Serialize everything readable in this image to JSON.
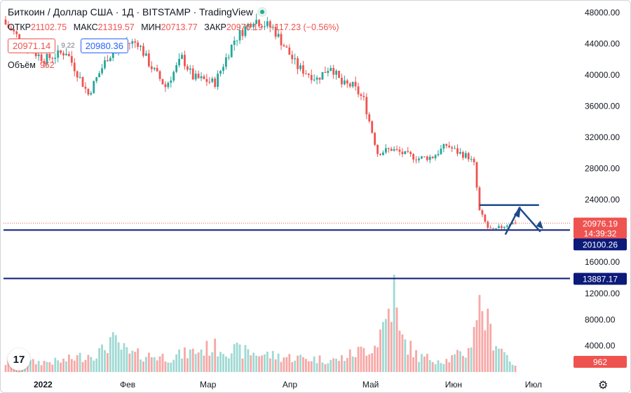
{
  "header": {
    "title": "Биткоин / Доллар США · 1Д · BITSTAMP · TradingView",
    "ohlc": [
      {
        "key": "ОТКР",
        "value": "21102.75"
      },
      {
        "key": "МАКС",
        "value": "21319.57"
      },
      {
        "key": "МИН",
        "value": "20713.77"
      },
      {
        "key": "ЗАКР",
        "value": "20976.19"
      }
    ],
    "change": "−117.23 (−0.56%)",
    "sell_price": "20971.14",
    "spread": "9.22",
    "buy_price": "20980.36",
    "volume_label": "Объём",
    "volume_value": "962"
  },
  "colors": {
    "up": "#26a69a",
    "down": "#ef5350",
    "level_line": "#0c1a7a",
    "drawing": "#1e4a8a",
    "volume_up": "#9fd9d3",
    "volume_down": "#f6a8a6"
  },
  "icons": {
    "logo": "tradingview-logo-icon",
    "settings": "gear-icon"
  },
  "chart_data": {
    "type": "candlestick",
    "symbol": "BTCUSD",
    "exchange": "BITSTAMP",
    "interval": "1D",
    "price_ylim": [
      12000,
      49000
    ],
    "price_ticks": [
      "48000.00",
      "44000.00",
      "40000.00",
      "36000.00",
      "32000.00",
      "28000.00",
      "24000.00",
      "16000.00"
    ],
    "volume_ylim": [
      0,
      13000
    ],
    "volume_ticks": [
      "12000.00",
      "8000.00",
      "4000.00"
    ],
    "x_labels": [
      "2022",
      "Фев",
      "Мар",
      "Апр",
      "Май",
      "Июн",
      "Июл"
    ],
    "price_labels": {
      "last": "20976.19",
      "countdown": "14:39:32",
      "level_1": "20100.26",
      "level_2": "13887.17",
      "volume_last": "962"
    },
    "horizontal_levels": [
      20100.26,
      13887.17
    ],
    "drawing_line": {
      "start_bar": 172,
      "end_bar": 189,
      "value": 23300
    },
    "close_anchors": [
      [
        0,
        46500
      ],
      [
        8,
        43500
      ],
      [
        14,
        42000
      ],
      [
        22,
        43000
      ],
      [
        30,
        37500
      ],
      [
        37,
        42300
      ],
      [
        43,
        44000
      ],
      [
        48,
        44200
      ],
      [
        52,
        41500
      ],
      [
        58,
        38500
      ],
      [
        64,
        42200
      ],
      [
        68,
        39700
      ],
      [
        76,
        39000
      ],
      [
        83,
        44500
      ],
      [
        90,
        47200
      ],
      [
        97,
        46000
      ],
      [
        106,
        41000
      ],
      [
        113,
        39500
      ],
      [
        118,
        41200
      ],
      [
        122,
        38800
      ],
      [
        126,
        38600
      ],
      [
        130,
        36800
      ],
      [
        135,
        30000
      ],
      [
        140,
        30500
      ],
      [
        145,
        29800
      ],
      [
        150,
        29300
      ],
      [
        155,
        29500
      ],
      [
        160,
        31000
      ],
      [
        164,
        30100
      ],
      [
        168,
        29500
      ],
      [
        170,
        28500
      ],
      [
        171,
        25500
      ],
      [
        172,
        22500
      ],
      [
        175,
        20400
      ],
      [
        177,
        20000
      ],
      [
        180,
        20500
      ],
      [
        183,
        21000
      ],
      [
        185,
        20976.19
      ]
    ],
    "volume_anchors": [
      [
        0,
        1500
      ],
      [
        20,
        1800
      ],
      [
        35,
        3500
      ],
      [
        38,
        5500
      ],
      [
        45,
        3000
      ],
      [
        60,
        2500
      ],
      [
        75,
        4200
      ],
      [
        90,
        3200
      ],
      [
        100,
        2600
      ],
      [
        120,
        2000
      ],
      [
        134,
        4500
      ],
      [
        138,
        9000
      ],
      [
        141,
        13500
      ],
      [
        143,
        6000
      ],
      [
        150,
        2500
      ],
      [
        160,
        2000
      ],
      [
        168,
        3500
      ],
      [
        171,
        10500
      ],
      [
        173,
        11000
      ],
      [
        176,
        6500
      ],
      [
        180,
        4000
      ],
      [
        185,
        962
      ]
    ]
  }
}
